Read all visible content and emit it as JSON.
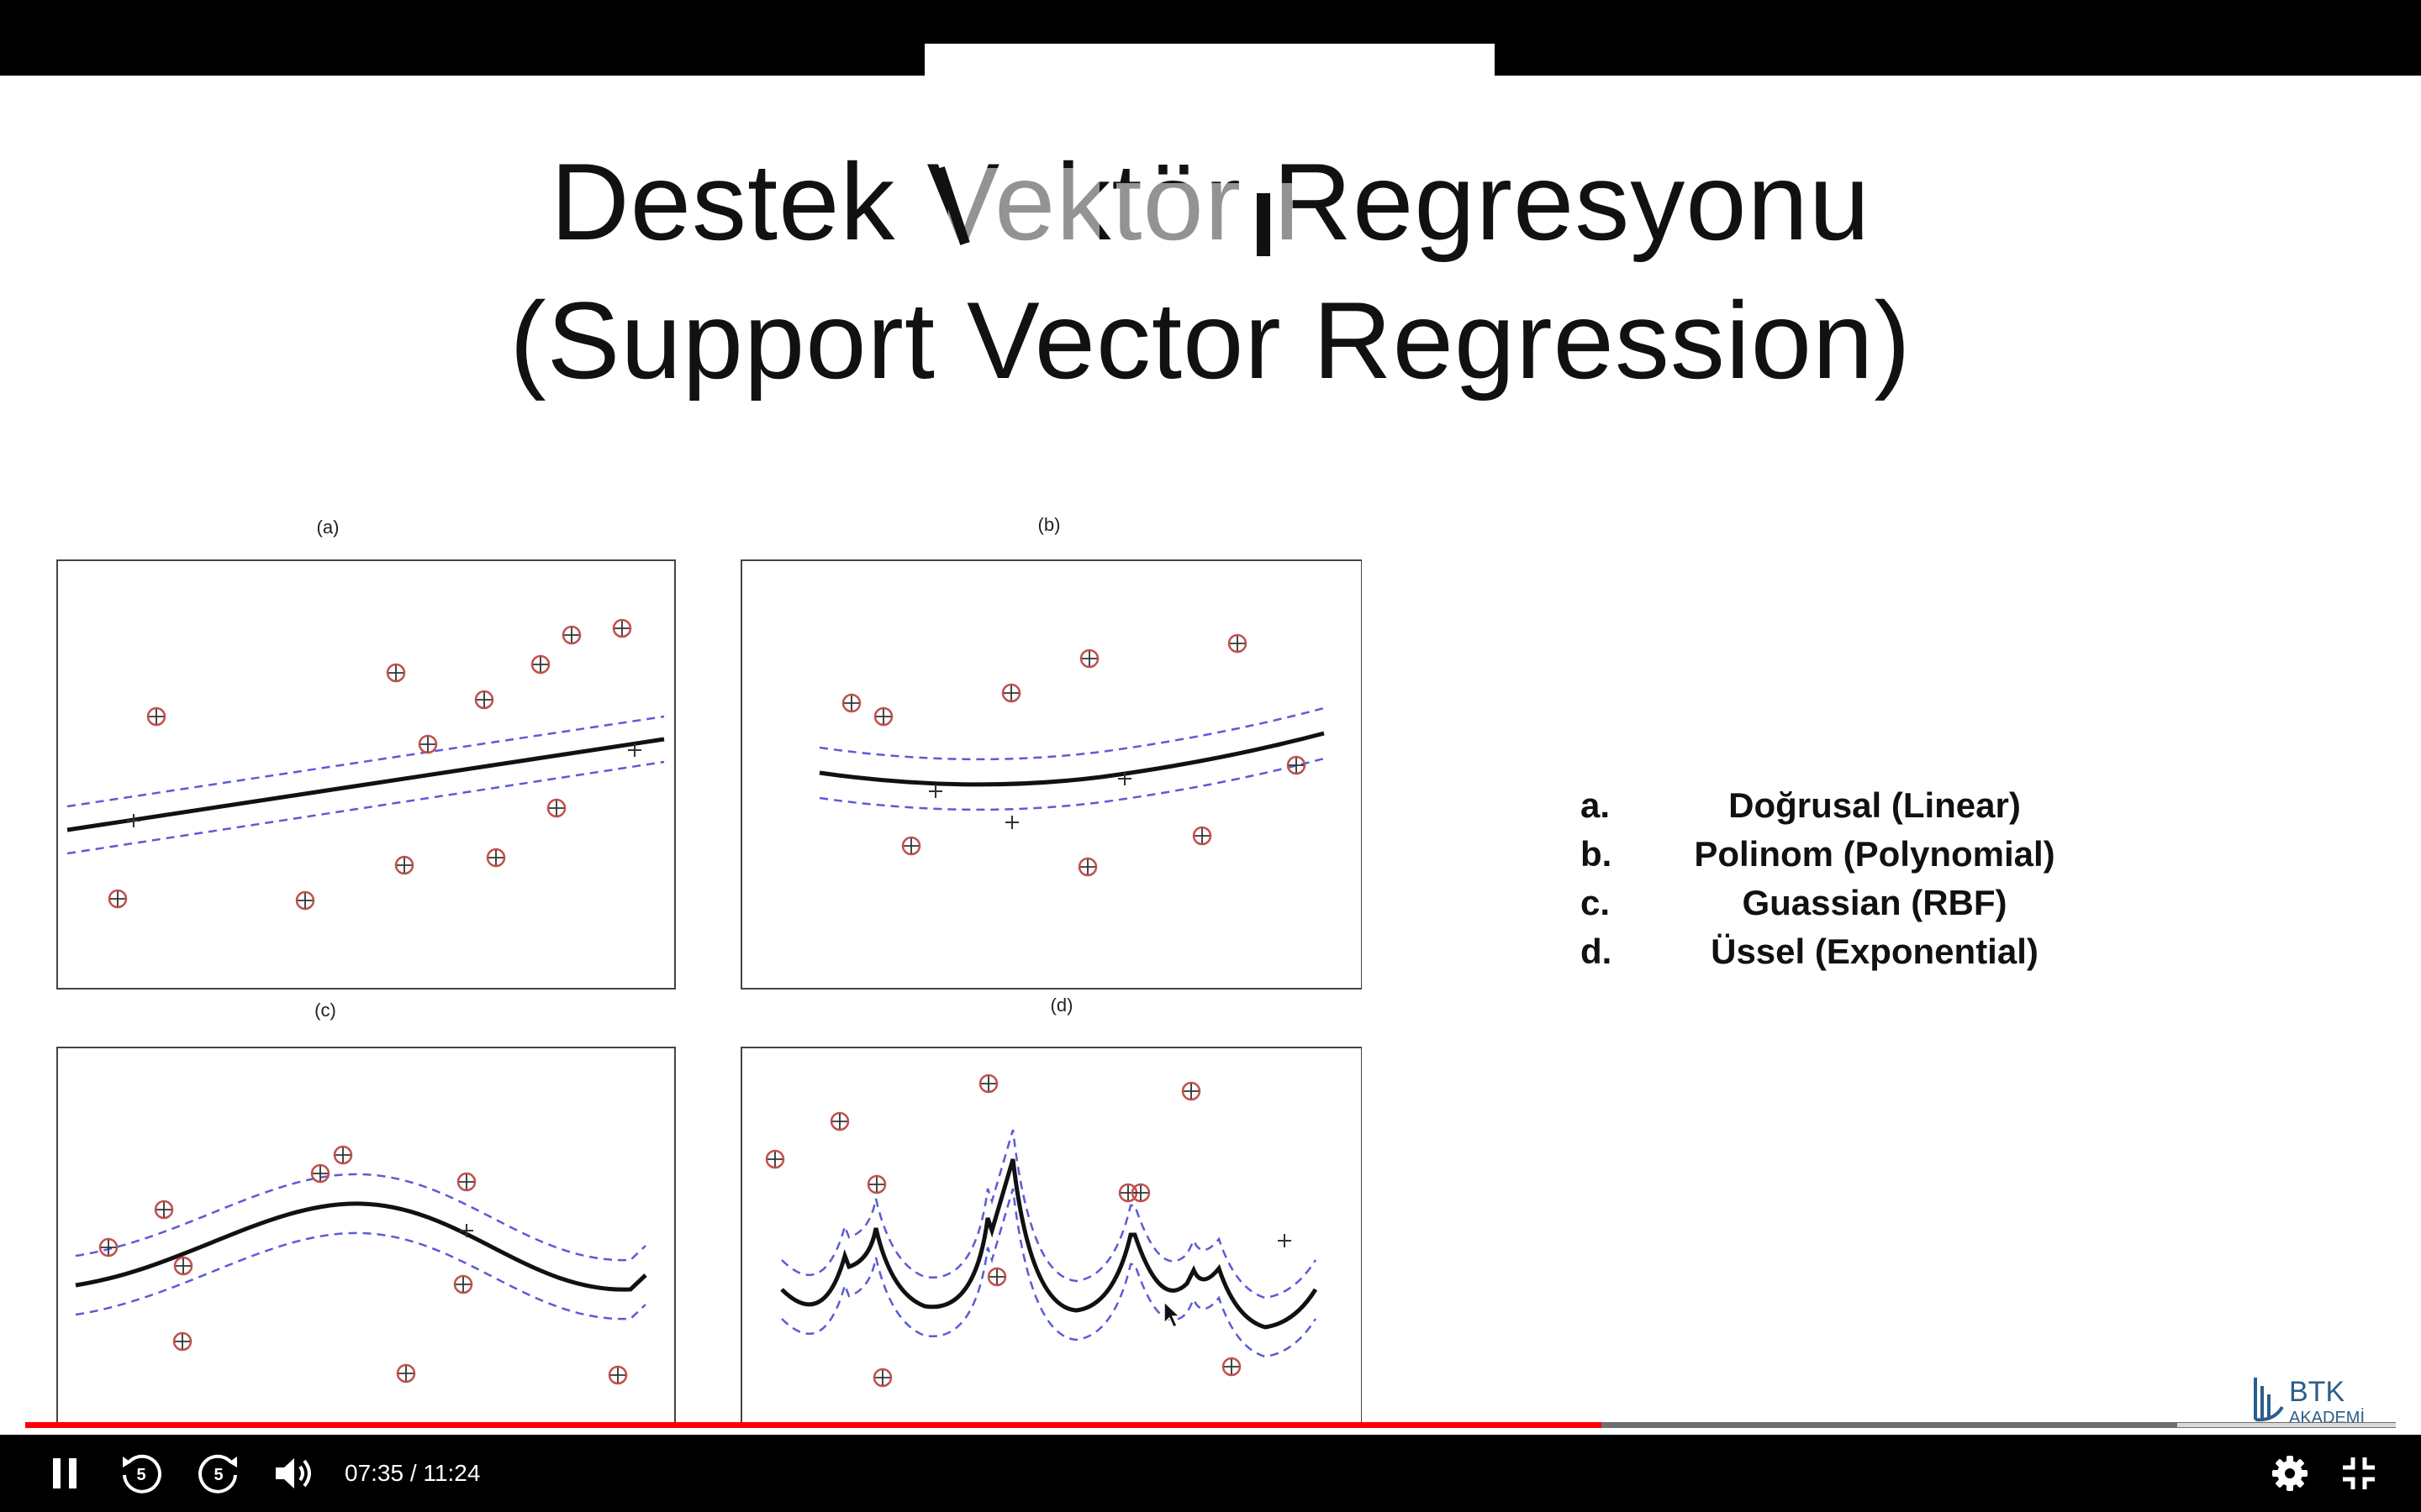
{
  "slide": {
    "title_line1": "Destek Vektör Regresyonu",
    "title_line2": "(Support Vector Regression)",
    "panel_labels": [
      "(a)",
      "(b)",
      "(c)",
      "(d)"
    ],
    "kernels": [
      {
        "letter": "a.",
        "label": "Doğrusal (Linear)"
      },
      {
        "letter": "b.",
        "label": "Polinom (Polynomial)"
      },
      {
        "letter": "c.",
        "label": "Guassian (RBF)"
      },
      {
        "letter": "d.",
        "label": "Üssel (Exponential)"
      }
    ],
    "logo_text": "BTK",
    "logo_subtext": "AKADEMİ"
  },
  "player": {
    "current_time": "07:35",
    "duration": "11:24",
    "time_display": "07:35 / 11:24",
    "progress_fraction": 0.665,
    "skip_back_seconds": "5",
    "skip_forward_seconds": "5",
    "icons": [
      "pause-icon",
      "replay-5-icon",
      "forward-5-icon",
      "volume-icon",
      "settings-icon",
      "exit-fullscreen-icon"
    ]
  },
  "colors": {
    "progress": "#ff0000",
    "support_vector": "#c0504d",
    "margin": "#5b5bd6"
  }
}
